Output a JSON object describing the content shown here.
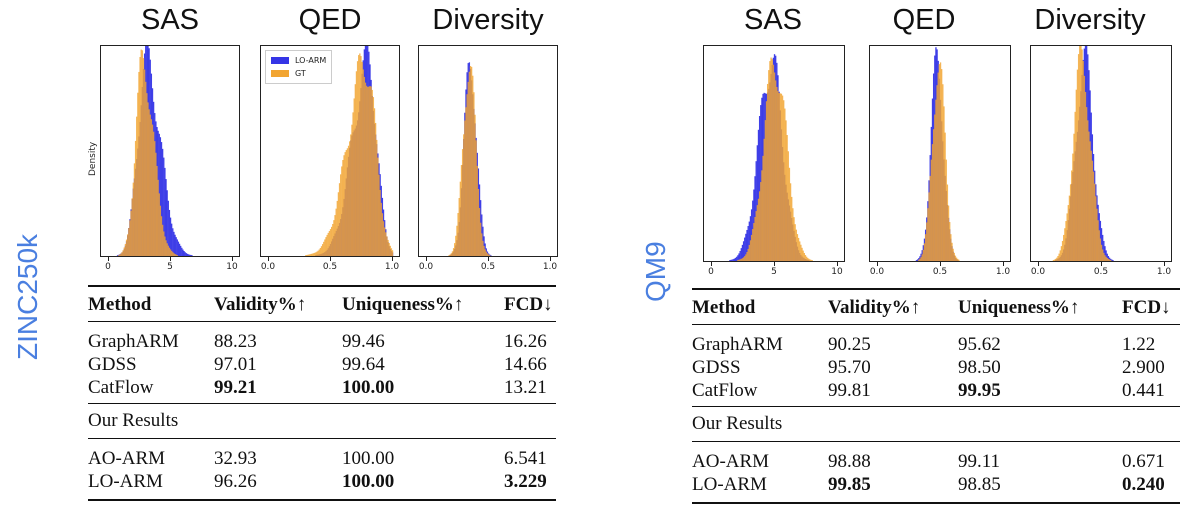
{
  "colors": {
    "lo_arm": "#3535e6",
    "gt": "#f2a531",
    "dataset_label": "#4a7fe0"
  },
  "legend": {
    "lo_arm": "LO-ARM",
    "gt": "GT"
  },
  "density_label": "Density",
  "panels": [
    {
      "dataset": "ZINC250k",
      "subplot_titles": [
        "SAS",
        "QED",
        "Diversity"
      ],
      "table": {
        "headers": [
          "Method",
          "Validity%↑",
          "Uniqueness%↑",
          "FCD↓"
        ],
        "baselines": [
          {
            "method": "GraphARM",
            "validity": "88.23",
            "uniqueness": "99.46",
            "fcd": "16.26"
          },
          {
            "method": "GDSS",
            "validity": "97.01",
            "uniqueness": "99.64",
            "fcd": "14.66"
          },
          {
            "method": "CatFlow",
            "validity": "99.21",
            "uniqueness": "100.00",
            "fcd": "13.21"
          }
        ],
        "section": "Our Results",
        "ours": [
          {
            "method": "AO-ARM",
            "validity": "32.93",
            "uniqueness": "100.00",
            "fcd": "6.541"
          },
          {
            "method": "LO-ARM",
            "validity": "96.26",
            "uniqueness": "100.00",
            "fcd": "3.229"
          }
        ]
      }
    },
    {
      "dataset": "QM9",
      "subplot_titles": [
        "SAS",
        "QED",
        "Diversity"
      ],
      "table": {
        "headers": [
          "Method",
          "Validity%↑",
          "Uniqueness%↑",
          "FCD↓"
        ],
        "baselines": [
          {
            "method": "GraphARM",
            "validity": "90.25",
            "uniqueness": "95.62",
            "fcd": "1.22"
          },
          {
            "method": "GDSS",
            "validity": "95.70",
            "uniqueness": "98.50",
            "fcd": "2.900"
          },
          {
            "method": "CatFlow",
            "validity": "99.81",
            "uniqueness": "99.95",
            "fcd": "0.441"
          }
        ],
        "section": "Our Results",
        "ours": [
          {
            "method": "AO-ARM",
            "validity": "98.88",
            "uniqueness": "99.11",
            "fcd": "0.671"
          },
          {
            "method": "LO-ARM",
            "validity": "99.85",
            "uniqueness": "98.85",
            "fcd": "0.240"
          }
        ]
      }
    }
  ],
  "chart_data": [
    {
      "type": "area",
      "dataset": "ZINC250k",
      "title": "SAS",
      "ylabel": "Density",
      "xlim": [
        0,
        10
      ],
      "xticks": [
        0,
        5,
        10
      ],
      "series": [
        {
          "name": "LO-ARM",
          "mean": 3.0,
          "sd": 0.7,
          "skew": 1.6
        },
        {
          "name": "GT",
          "mean": 2.75,
          "sd": 0.6,
          "skew": 1.4
        }
      ]
    },
    {
      "type": "area",
      "dataset": "ZINC250k",
      "title": "QED",
      "xlim": [
        0,
        1
      ],
      "xticks": [
        0.0,
        0.5,
        1.0
      ],
      "series": [
        {
          "name": "LO-ARM",
          "mean": 0.8,
          "sd": 0.07,
          "skew": 0.55
        },
        {
          "name": "GT",
          "mean": 0.78,
          "sd": 0.08,
          "skew": 0.55
        }
      ]
    },
    {
      "type": "area",
      "dataset": "ZINC250k",
      "title": "Diversity",
      "xlim": [
        0,
        1
      ],
      "xticks": [
        0.0,
        0.5,
        1.0
      ],
      "series": [
        {
          "name": "LO-ARM",
          "mean": 0.35,
          "sd": 0.05,
          "skew": 1.0
        },
        {
          "name": "GT",
          "mean": 0.34,
          "sd": 0.05,
          "skew": 1.0
        }
      ]
    },
    {
      "type": "area",
      "dataset": "QM9",
      "title": "SAS",
      "xlim": [
        0,
        10
      ],
      "xticks": [
        0,
        5,
        10
      ],
      "series": [
        {
          "name": "LO-ARM",
          "mean": 4.7,
          "sd": 0.9,
          "skew": 0.9
        },
        {
          "name": "GT",
          "mean": 5.0,
          "sd": 0.9,
          "skew": 1.0
        }
      ]
    },
    {
      "type": "area",
      "dataset": "QM9",
      "title": "QED",
      "xlim": [
        0,
        1
      ],
      "xticks": [
        0.0,
        0.5,
        1.0
      ],
      "series": [
        {
          "name": "LO-ARM",
          "mean": 0.47,
          "sd": 0.05,
          "skew": 1.0
        },
        {
          "name": "GT",
          "mean": 0.48,
          "sd": 0.05,
          "skew": 1.0
        }
      ]
    },
    {
      "type": "area",
      "dataset": "QM9",
      "title": "Diversity",
      "xlim": [
        0,
        1
      ],
      "xticks": [
        0.0,
        0.5,
        1.0
      ],
      "series": [
        {
          "name": "LO-ARM",
          "mean": 0.36,
          "sd": 0.07,
          "skew": 1.0
        },
        {
          "name": "GT",
          "mean": 0.34,
          "sd": 0.07,
          "skew": 1.0
        }
      ]
    }
  ]
}
